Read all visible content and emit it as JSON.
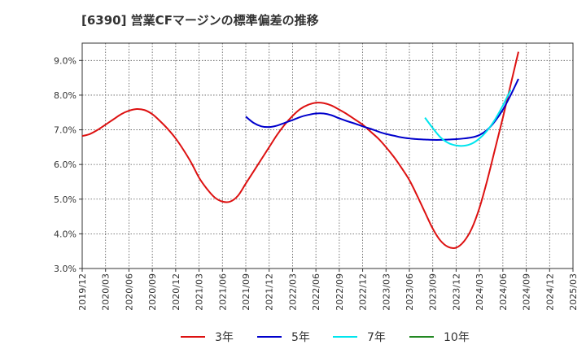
{
  "chart_data": {
    "type": "line",
    "title": "[6390]  営業CFマージンの標準偏差の推移",
    "xlabel": "",
    "ylabel": "",
    "x_ticks": [
      "2019/12",
      "2020/03",
      "2020/06",
      "2020/09",
      "2020/12",
      "2021/03",
      "2021/06",
      "2021/09",
      "2021/12",
      "2022/03",
      "2022/06",
      "2022/09",
      "2022/12",
      "2023/03",
      "2023/06",
      "2023/09",
      "2023/12",
      "2024/03",
      "2024/06",
      "2024/09",
      "2024/12",
      "2025/03"
    ],
    "y_ticks": [
      "3.0%",
      "4.0%",
      "5.0%",
      "6.0%",
      "7.0%",
      "8.0%",
      "9.0%"
    ],
    "ylim": [
      3.0,
      9.5
    ],
    "x_range": [
      "2019/12",
      "2025/03"
    ],
    "grid": true,
    "legend_position": "bottom",
    "series": [
      {
        "name": "3年",
        "color": "#dd1111",
        "points": [
          [
            "2019/12",
            6.82
          ],
          [
            "2020/01",
            6.88
          ],
          [
            "2020/02",
            7.0
          ],
          [
            "2020/03",
            7.15
          ],
          [
            "2020/04",
            7.3
          ],
          [
            "2020/05",
            7.45
          ],
          [
            "2020/06",
            7.55
          ],
          [
            "2020/07",
            7.6
          ],
          [
            "2020/08",
            7.57
          ],
          [
            "2020/09",
            7.45
          ],
          [
            "2020/10",
            7.25
          ],
          [
            "2020/11",
            7.02
          ],
          [
            "2020/12",
            6.75
          ],
          [
            "2020/13",
            6.42
          ],
          [
            "2021/02",
            6.05
          ],
          [
            "2021/03",
            5.62
          ],
          [
            "2021/04",
            5.3
          ],
          [
            "2021/05",
            5.05
          ],
          [
            "2021/06",
            4.93
          ],
          [
            "2021/07",
            4.93
          ],
          [
            "2021/08",
            5.1
          ],
          [
            "2021/09",
            5.45
          ],
          [
            "2021/10",
            5.8
          ],
          [
            "2021/11",
            6.15
          ],
          [
            "2021/12",
            6.5
          ],
          [
            "2022/01",
            6.85
          ],
          [
            "2022/02",
            7.15
          ],
          [
            "2022/03",
            7.4
          ],
          [
            "2022/04",
            7.6
          ],
          [
            "2022/05",
            7.72
          ],
          [
            "2022/06",
            7.78
          ],
          [
            "2022/07",
            7.77
          ],
          [
            "2022/08",
            7.7
          ],
          [
            "2022/09",
            7.58
          ],
          [
            "2022/10",
            7.45
          ],
          [
            "2022/11",
            7.3
          ],
          [
            "2022/12",
            7.15
          ],
          [
            "2023/01",
            6.95
          ],
          [
            "2023/02",
            6.75
          ],
          [
            "2023/03",
            6.5
          ],
          [
            "2023/04",
            6.22
          ],
          [
            "2023/05",
            5.9
          ],
          [
            "2023/06",
            5.55
          ],
          [
            "2023/07",
            5.1
          ],
          [
            "2023/08",
            4.62
          ],
          [
            "2023/09",
            4.15
          ],
          [
            "2023/10",
            3.8
          ],
          [
            "2023/11",
            3.62
          ],
          [
            "2023/12",
            3.6
          ],
          [
            "2024/01",
            3.78
          ],
          [
            "2024/02",
            4.15
          ],
          [
            "2024/03",
            4.75
          ],
          [
            "2024/04",
            5.55
          ],
          [
            "2024/05",
            6.45
          ],
          [
            "2024/06",
            7.35
          ],
          [
            "2024/07",
            8.3
          ],
          [
            "2024/08",
            9.25
          ]
        ]
      },
      {
        "name": "5年",
        "color": "#0000cc",
        "points": [
          [
            "2021/09",
            7.38
          ],
          [
            "2021/10",
            7.2
          ],
          [
            "2021/11",
            7.1
          ],
          [
            "2021/12",
            7.08
          ],
          [
            "2022/01",
            7.12
          ],
          [
            "2022/02",
            7.2
          ],
          [
            "2022/03",
            7.28
          ],
          [
            "2022/04",
            7.37
          ],
          [
            "2022/05",
            7.43
          ],
          [
            "2022/06",
            7.47
          ],
          [
            "2022/07",
            7.47
          ],
          [
            "2022/08",
            7.42
          ],
          [
            "2022/09",
            7.33
          ],
          [
            "2022/10",
            7.25
          ],
          [
            "2022/11",
            7.18
          ],
          [
            "2022/12",
            7.1
          ],
          [
            "2023/01",
            7.03
          ],
          [
            "2023/02",
            6.95
          ],
          [
            "2023/03",
            6.88
          ],
          [
            "2023/04",
            6.83
          ],
          [
            "2023/05",
            6.78
          ],
          [
            "2023/06",
            6.75
          ],
          [
            "2023/07",
            6.73
          ],
          [
            "2023/08",
            6.72
          ],
          [
            "2023/09",
            6.71
          ],
          [
            "2023/10",
            6.71
          ],
          [
            "2023/11",
            6.72
          ],
          [
            "2023/12",
            6.73
          ],
          [
            "2024/01",
            6.75
          ],
          [
            "2024/02",
            6.78
          ],
          [
            "2024/03",
            6.85
          ],
          [
            "2024/04",
            7.0
          ],
          [
            "2024/05",
            7.25
          ],
          [
            "2024/06",
            7.58
          ],
          [
            "2024/07",
            8.0
          ],
          [
            "2024/08",
            8.47
          ]
        ]
      },
      {
        "name": "7年",
        "color": "#00e5ee",
        "points": [
          [
            "2023/08",
            7.35
          ],
          [
            "2023/09",
            7.05
          ],
          [
            "2023/10",
            6.78
          ],
          [
            "2023/11",
            6.62
          ],
          [
            "2023/12",
            6.55
          ],
          [
            "2024/01",
            6.54
          ],
          [
            "2024/02",
            6.6
          ],
          [
            "2024/03",
            6.75
          ],
          [
            "2024/04",
            6.98
          ],
          [
            "2024/05",
            7.3
          ],
          [
            "2024/06",
            7.7
          ],
          [
            "2024/07",
            8.15
          ]
        ]
      },
      {
        "name": "10年",
        "color": "#228822",
        "points": []
      }
    ]
  }
}
